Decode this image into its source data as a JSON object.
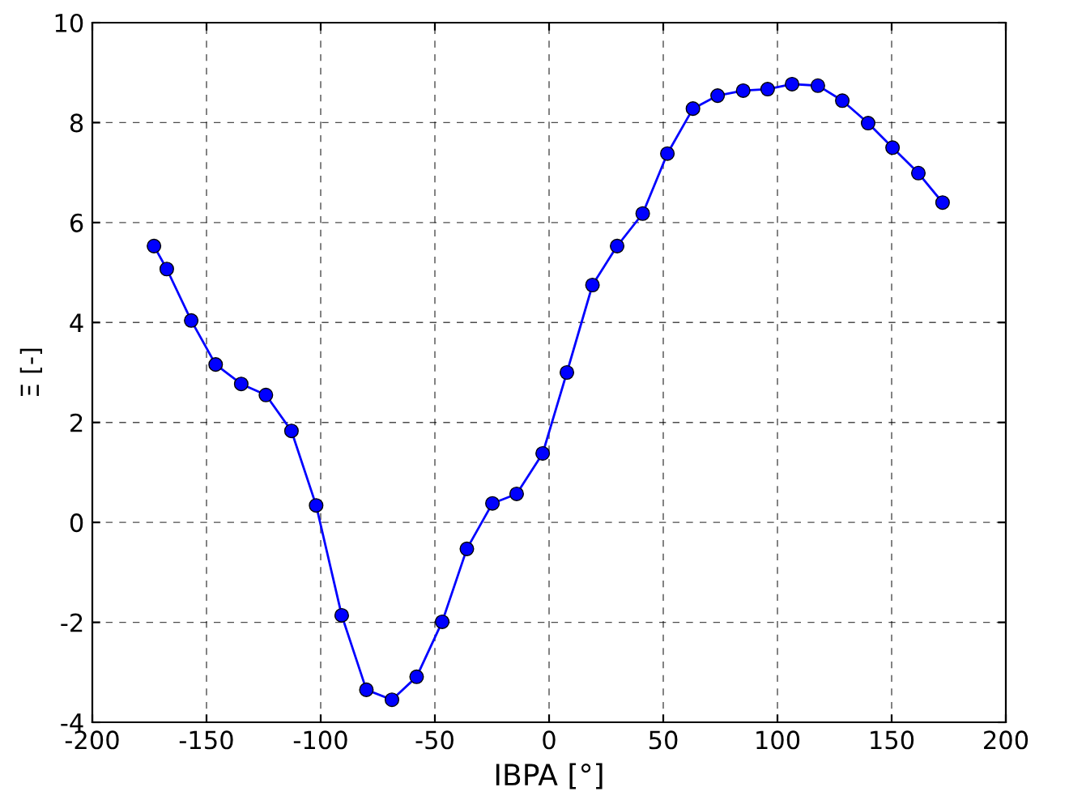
{
  "chart_data": {
    "type": "line",
    "xlabel": "IBPA [°]",
    "ylabel": "Ξ [-]",
    "x": [
      -173,
      -167.4,
      -156.7,
      -146,
      -134.8,
      -124,
      -112.8,
      -102,
      -90.8,
      -80,
      -68.8,
      -58,
      -46.8,
      -36,
      -24.8,
      -14.2,
      -2.8,
      7.8,
      19,
      29.8,
      41,
      51.8,
      63,
      73.8,
      85,
      95.7,
      106.4,
      117.7,
      128.4,
      139.7,
      150.4,
      161.7,
      172.3
    ],
    "series": [
      {
        "color": "#0000ff",
        "values": [
          5.53,
          5.07,
          4.04,
          3.16,
          2.77,
          2.55,
          1.83,
          0.34,
          -1.86,
          -3.35,
          -3.55,
          -3.09,
          -1.99,
          -0.53,
          0.38,
          0.57,
          1.38,
          3.0,
          4.75,
          5.53,
          6.18,
          7.38,
          8.28,
          8.54,
          8.64,
          8.67,
          8.77,
          8.74,
          8.44,
          7.99,
          7.5,
          6.99,
          6.4
        ]
      }
    ],
    "xlim": [
      -200,
      200
    ],
    "ylim": [
      -4,
      10
    ],
    "xticks": [
      -200,
      -150,
      -100,
      -50,
      0,
      50,
      100,
      150,
      200
    ],
    "yticks": [
      -4,
      -2,
      0,
      2,
      4,
      6,
      8,
      10
    ],
    "grid": true,
    "marker": "circle",
    "line_style": "solid"
  }
}
